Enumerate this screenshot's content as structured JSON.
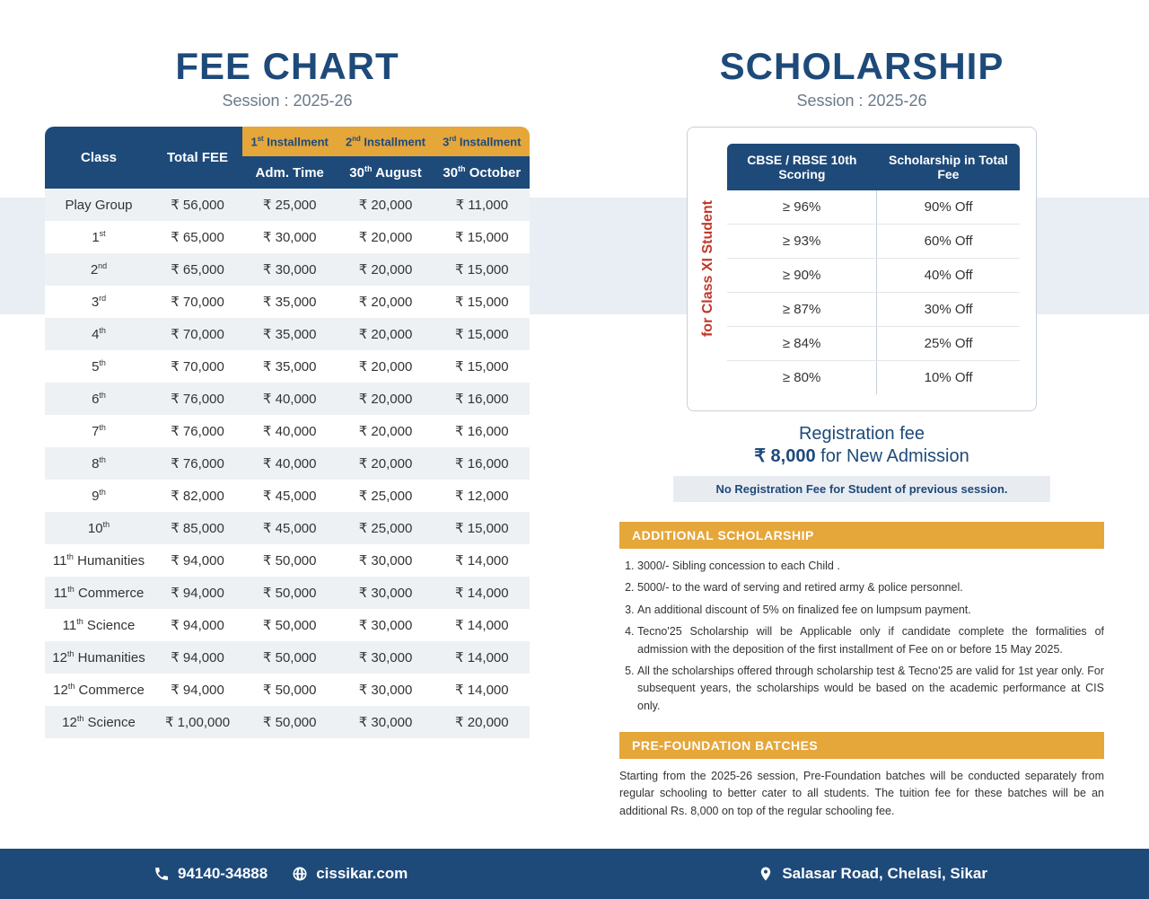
{
  "colors": {
    "blue": "#1e4a7a",
    "gold": "#e5a63a",
    "red": "#c0392b",
    "stripe": "#e8eef3",
    "rowEven": "#eef1f4"
  },
  "left": {
    "title": "FEE CHART",
    "session": "Session : 2025-26",
    "headers": {
      "class": "Class",
      "total": "Total FEE",
      "inst": [
        "1",
        "2",
        "3"
      ],
      "instSuffix": [
        "st",
        "nd",
        "rd"
      ],
      "instWord": "Installment",
      "sub": [
        "Adm. Time",
        "30",
        "30"
      ],
      "subSuffix": [
        "",
        "th",
        "th"
      ],
      "subMonth": [
        "",
        "August",
        "October"
      ]
    },
    "rows": [
      {
        "class": "Play Group",
        "sup": "",
        "total": "₹ 56,000",
        "i1": "₹ 25,000",
        "i2": "₹ 20,000",
        "i3": "₹ 11,000"
      },
      {
        "class": "1",
        "sup": "st",
        "total": "₹ 65,000",
        "i1": "₹ 30,000",
        "i2": "₹ 20,000",
        "i3": "₹ 15,000"
      },
      {
        "class": "2",
        "sup": "nd",
        "total": "₹ 65,000",
        "i1": "₹ 30,000",
        "i2": "₹ 20,000",
        "i3": "₹ 15,000"
      },
      {
        "class": "3",
        "sup": "rd",
        "total": "₹ 70,000",
        "i1": "₹ 35,000",
        "i2": "₹ 20,000",
        "i3": "₹ 15,000"
      },
      {
        "class": "4",
        "sup": "th",
        "total": "₹ 70,000",
        "i1": "₹ 35,000",
        "i2": "₹ 20,000",
        "i3": "₹ 15,000"
      },
      {
        "class": "5",
        "sup": "th",
        "total": "₹ 70,000",
        "i1": "₹ 35,000",
        "i2": "₹ 20,000",
        "i3": "₹ 15,000"
      },
      {
        "class": "6",
        "sup": "th",
        "total": "₹ 76,000",
        "i1": "₹ 40,000",
        "i2": "₹ 20,000",
        "i3": "₹ 16,000"
      },
      {
        "class": "7",
        "sup": "th",
        "total": "₹ 76,000",
        "i1": "₹ 40,000",
        "i2": "₹ 20,000",
        "i3": "₹ 16,000"
      },
      {
        "class": "8",
        "sup": "th",
        "total": "₹ 76,000",
        "i1": "₹ 40,000",
        "i2": "₹ 20,000",
        "i3": "₹ 16,000"
      },
      {
        "class": "9",
        "sup": "th",
        "total": "₹ 82,000",
        "i1": "₹ 45,000",
        "i2": "₹ 25,000",
        "i3": "₹ 12,000"
      },
      {
        "class": "10",
        "sup": "th",
        "total": "₹ 85,000",
        "i1": "₹ 45,000",
        "i2": "₹ 25,000",
        "i3": "₹ 15,000"
      },
      {
        "class": "11",
        "sup": "th",
        "suffix": " Humanities",
        "total": "₹ 94,000",
        "i1": "₹ 50,000",
        "i2": "₹ 30,000",
        "i3": "₹ 14,000"
      },
      {
        "class": "11",
        "sup": "th",
        "suffix": " Commerce",
        "total": "₹ 94,000",
        "i1": "₹ 50,000",
        "i2": "₹ 30,000",
        "i3": "₹ 14,000"
      },
      {
        "class": "11",
        "sup": "th",
        "suffix": " Science",
        "total": "₹ 94,000",
        "i1": "₹ 50,000",
        "i2": "₹ 30,000",
        "i3": "₹ 14,000"
      },
      {
        "class": "12",
        "sup": "th",
        "suffix": " Humanities",
        "total": "₹ 94,000",
        "i1": "₹ 50,000",
        "i2": "₹ 30,000",
        "i3": "₹ 14,000"
      },
      {
        "class": "12",
        "sup": "th",
        "suffix": " Commerce",
        "total": "₹ 94,000",
        "i1": "₹ 50,000",
        "i2": "₹ 30,000",
        "i3": "₹ 14,000"
      },
      {
        "class": "12",
        "sup": "th",
        "suffix": " Science",
        "total": "₹ 1,00,000",
        "i1": "₹ 50,000",
        "i2": "₹ 30,000",
        "i3": "₹ 20,000"
      }
    ]
  },
  "right": {
    "title": "SCHOLARSHIP",
    "session": "Session : 2025-26",
    "vert": "for Class XI Student",
    "schHeaders": [
      "CBSE / RBSE 10th Scoring",
      "Scholarship in Total Fee"
    ],
    "schRows": [
      {
        "score": "≥ 96%",
        "off": "90% Off"
      },
      {
        "score": "≥ 93%",
        "off": "60% Off"
      },
      {
        "score": "≥ 90%",
        "off": "40% Off"
      },
      {
        "score": "≥ 87%",
        "off": "30% Off"
      },
      {
        "score": "≥ 84%",
        "off": "25% Off"
      },
      {
        "score": "≥ 80%",
        "off": "10% Off"
      }
    ],
    "regLine1": "Registration fee",
    "regAmount": "₹ 8,000",
    "regLine2": " for New Admission",
    "noReg": "No Registration Fee for Student of previous session.",
    "addSchTitle": "ADDITIONAL SCHOLARSHIP",
    "addSchItems": [
      "3000/- Sibling concession to each Child .",
      "5000/- to the ward of serving and retired army & police personnel.",
      "An additional discount of 5% on finalized fee on lumpsum payment.",
      "Tecno'25 Scholarship will be Applicable only if candidate complete the formalities of admission with the deposition of the first installment of Fee on or before 15 May 2025.",
      "All the scholarships offered through scholarship test & Tecno'25 are valid for 1st year only. For subsequent years, the scholarships would be based on the academic performance at CIS only."
    ],
    "preTitle": "PRE-FOUNDATION BATCHES",
    "preText": "Starting from the 2025-26 session, Pre-Foundation batches will be conducted separately from regular schooling to better cater to all students. The tuition fee for these batches will be an additional Rs. 8,000 on top of the regular schooling fee."
  },
  "footer": {
    "phone": "94140-34888",
    "web": "cissikar.com",
    "address": "Salasar Road, Chelasi, Sikar"
  }
}
